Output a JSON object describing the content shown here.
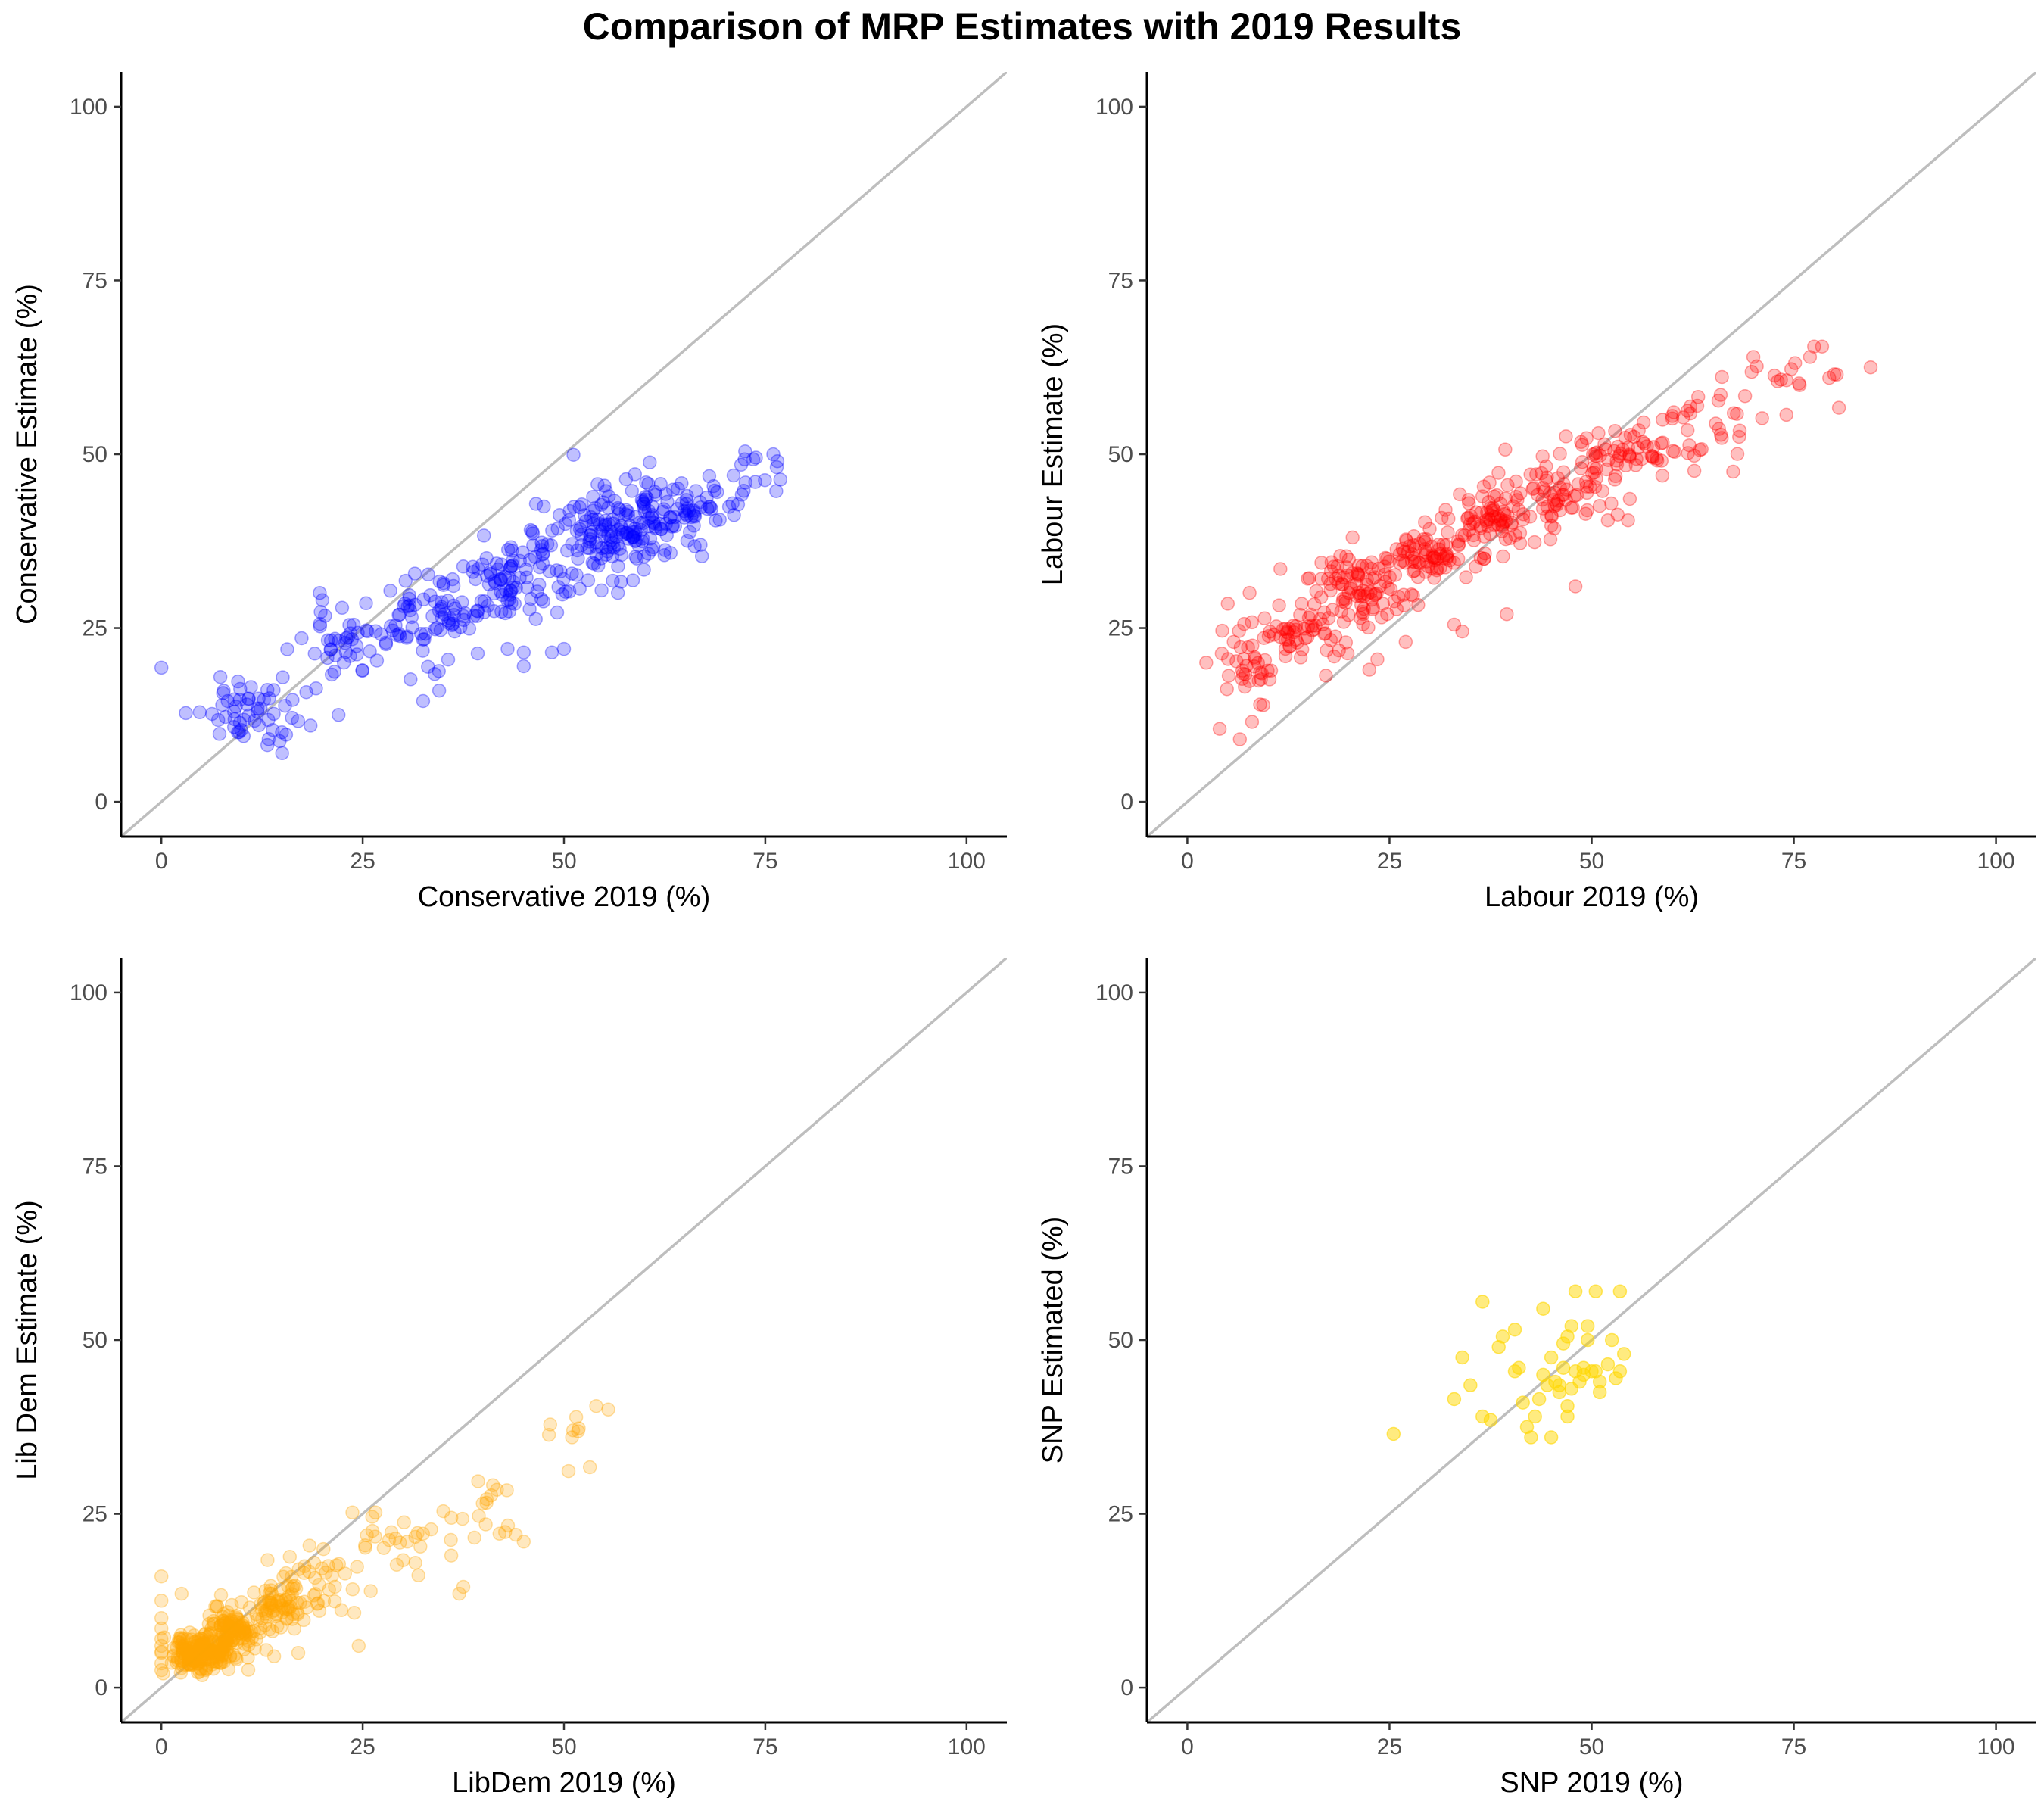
{
  "title": "Comparison of MRP Estimates with 2019 Results",
  "chart_data": [
    {
      "type": "scatter",
      "id": "conservative",
      "xlabel": "Conservative 2019 (%)",
      "ylabel": "Conservative Estimate (%)",
      "xlim": [
        -5,
        105
      ],
      "ylim": [
        -5,
        105
      ],
      "ticks": [
        0,
        25,
        50,
        75,
        100
      ],
      "reference_line": "y = x",
      "color": "#0000ff",
      "opacity": 0.25,
      "grid": false,
      "clusters": [
        {
          "cx": 12,
          "cy": 13,
          "sx": 4,
          "sy": 2.5,
          "n": 55
        },
        {
          "cx": 25,
          "cy": 23,
          "sx": 4,
          "sy": 3,
          "n": 60
        },
        {
          "cx": 36,
          "cy": 28,
          "sx": 4,
          "sy": 3,
          "n": 70
        },
        {
          "cx": 46,
          "cy": 33,
          "sx": 4,
          "sy": 3,
          "n": 80
        },
        {
          "cx": 55,
          "cy": 38,
          "sx": 4,
          "sy": 2.8,
          "n": 110
        },
        {
          "cx": 63,
          "cy": 42,
          "sx": 4,
          "sy": 2.5,
          "n": 100
        },
        {
          "cx": 72,
          "cy": 46,
          "sx": 2.5,
          "sy": 2.5,
          "n": 15
        }
      ],
      "points": [
        [
          0,
          19.3
        ],
        [
          76,
          50
        ],
        [
          76.5,
          49
        ],
        [
          72.5,
          50.4
        ],
        [
          72,
          48.5
        ],
        [
          15,
          7
        ],
        [
          32.5,
          14.5
        ],
        [
          34.5,
          16
        ],
        [
          45,
          19.5
        ],
        [
          43,
          22
        ],
        [
          48.5,
          21.5
        ],
        [
          50,
          22
        ],
        [
          45,
          21.5
        ],
        [
          20,
          29
        ],
        [
          22,
          12.5
        ],
        [
          9.5,
          10
        ]
      ]
    },
    {
      "type": "scatter",
      "id": "labour",
      "xlabel": "Labour 2019 (%)",
      "ylabel": "Labour Estimate (%)",
      "xlim": [
        -5,
        105
      ],
      "ylim": [
        -5,
        105
      ],
      "ticks": [
        0,
        25,
        50,
        75,
        100
      ],
      "reference_line": "y = x",
      "color": "#ff0000",
      "opacity": 0.25,
      "grid": false,
      "clusters": [
        {
          "cx": 8,
          "cy": 20,
          "sx": 2.5,
          "sy": 3,
          "n": 40
        },
        {
          "cx": 15,
          "cy": 25,
          "sx": 3,
          "sy": 2.5,
          "n": 55
        },
        {
          "cx": 22,
          "cy": 31,
          "sx": 3,
          "sy": 2.5,
          "n": 90
        },
        {
          "cx": 30,
          "cy": 36,
          "sx": 3,
          "sy": 2.5,
          "n": 70
        },
        {
          "cx": 38,
          "cy": 41,
          "sx": 3,
          "sy": 2.5,
          "n": 75
        },
        {
          "cx": 46,
          "cy": 45,
          "sx": 3,
          "sy": 2.5,
          "n": 65
        },
        {
          "cx": 55,
          "cy": 50,
          "sx": 3.5,
          "sy": 2.5,
          "n": 55
        },
        {
          "cx": 64,
          "cy": 55,
          "sx": 3,
          "sy": 2.5,
          "n": 30
        },
        {
          "cx": 75,
          "cy": 60,
          "sx": 3,
          "sy": 2,
          "n": 12
        }
      ],
      "points": [
        [
          4,
          10.5
        ],
        [
          5,
          28.5
        ],
        [
          6.5,
          9
        ],
        [
          8,
          11.5
        ],
        [
          9,
          14
        ],
        [
          11.5,
          33.5
        ],
        [
          39.5,
          27
        ],
        [
          48,
          31
        ],
        [
          22.5,
          19
        ],
        [
          23.5,
          20.5
        ],
        [
          34,
          24.5
        ],
        [
          33,
          25.5
        ],
        [
          52,
          40.5
        ],
        [
          54.5,
          40.5
        ],
        [
          67.5,
          47.5
        ],
        [
          70,
          64
        ],
        [
          77.5,
          65.5
        ],
        [
          78.5,
          65.5
        ],
        [
          84.5,
          62.5
        ],
        [
          77,
          64
        ],
        [
          80,
          61.5
        ],
        [
          73,
          60.5
        ],
        [
          27,
          23
        ]
      ]
    },
    {
      "type": "scatter",
      "id": "libdem",
      "xlabel": "LibDem 2019 (%)",
      "ylabel": "Lib Dem Estimate (%)",
      "xlim": [
        -5,
        105
      ],
      "ylim": [
        -5,
        105
      ],
      "ticks": [
        0,
        25,
        50,
        75,
        100
      ],
      "reference_line": "y = x",
      "color": "#ffa500",
      "opacity": 0.25,
      "grid": false,
      "clusters": [
        {
          "cx": 5,
          "cy": 5,
          "sx": 1.8,
          "sy": 1.5,
          "n": 170
        },
        {
          "cx": 9,
          "cy": 8,
          "sx": 2,
          "sy": 1.8,
          "n": 120
        },
        {
          "cx": 14,
          "cy": 11.5,
          "sx": 2,
          "sy": 1.8,
          "n": 70
        },
        {
          "cx": 20,
          "cy": 16,
          "sx": 2.5,
          "sy": 2,
          "n": 35
        },
        {
          "cx": 29,
          "cy": 21,
          "sx": 3,
          "sy": 2,
          "n": 25
        },
        {
          "cx": 39,
          "cy": 26,
          "sx": 3,
          "sy": 2.5,
          "n": 18
        },
        {
          "cx": 50,
          "cy": 36,
          "sx": 3,
          "sy": 2.5,
          "n": 8
        }
      ],
      "points": [
        [
          0,
          16
        ],
        [
          0,
          12.5
        ],
        [
          0,
          10
        ],
        [
          0,
          8.5
        ],
        [
          0,
          7
        ],
        [
          0,
          6
        ],
        [
          0,
          5
        ],
        [
          0,
          3.5
        ],
        [
          0,
          2.5
        ],
        [
          24.5,
          6
        ],
        [
          37,
          13.5
        ],
        [
          37.5,
          14.5
        ],
        [
          45,
          21
        ],
        [
          54,
          40.5
        ],
        [
          55.5,
          40
        ],
        [
          51,
          36
        ],
        [
          2.5,
          13.5
        ],
        [
          14,
          4.5
        ],
        [
          17,
          5
        ],
        [
          36,
          19
        ],
        [
          44,
          22
        ]
      ]
    },
    {
      "type": "scatter",
      "id": "snp",
      "xlabel": "SNP 2019 (%)",
      "ylabel": "SNP Estimated (%)",
      "xlim": [
        -5,
        105
      ],
      "ylim": [
        -5,
        105
      ],
      "ticks": [
        0,
        25,
        50,
        75,
        100
      ],
      "reference_line": "y = x",
      "color": "#ffd700",
      "opacity": 0.5,
      "grid": false,
      "points": [
        [
          25.5,
          36.5
        ],
        [
          33,
          41.5
        ],
        [
          34,
          47.5
        ],
        [
          35,
          43.5
        ],
        [
          36.5,
          55.5
        ],
        [
          36.5,
          39
        ],
        [
          37.5,
          38.5
        ],
        [
          38.5,
          49
        ],
        [
          39,
          50.5
        ],
        [
          40.5,
          51.5
        ],
        [
          40.5,
          45.5
        ],
        [
          41,
          46
        ],
        [
          41.5,
          41
        ],
        [
          42,
          37.5
        ],
        [
          42.5,
          36
        ],
        [
          43,
          39
        ],
        [
          43.5,
          41.5
        ],
        [
          44,
          54.5
        ],
        [
          44,
          45
        ],
        [
          44.5,
          43.5
        ],
        [
          45,
          36
        ],
        [
          45,
          47.5
        ],
        [
          45.5,
          44
        ],
        [
          46,
          42.5
        ],
        [
          46.5,
          49.5
        ],
        [
          46.5,
          46
        ],
        [
          47,
          50.5
        ],
        [
          47,
          39
        ],
        [
          47.5,
          52
        ],
        [
          47.5,
          43
        ],
        [
          48,
          57
        ],
        [
          48,
          45.5
        ],
        [
          48.5,
          44
        ],
        [
          49,
          46
        ],
        [
          49.5,
          52
        ],
        [
          49.5,
          50
        ],
        [
          50,
          45.5
        ],
        [
          50.5,
          45.5
        ],
        [
          50.5,
          57
        ],
        [
          51,
          42.5
        ],
        [
          51,
          44
        ],
        [
          52,
          46.5
        ],
        [
          52.5,
          50
        ],
        [
          53,
          44.5
        ],
        [
          53.5,
          57
        ],
        [
          53.5,
          45.5
        ],
        [
          54,
          48
        ],
        [
          47,
          40.5
        ],
        [
          46,
          43.5
        ],
        [
          49,
          45
        ]
      ]
    }
  ]
}
